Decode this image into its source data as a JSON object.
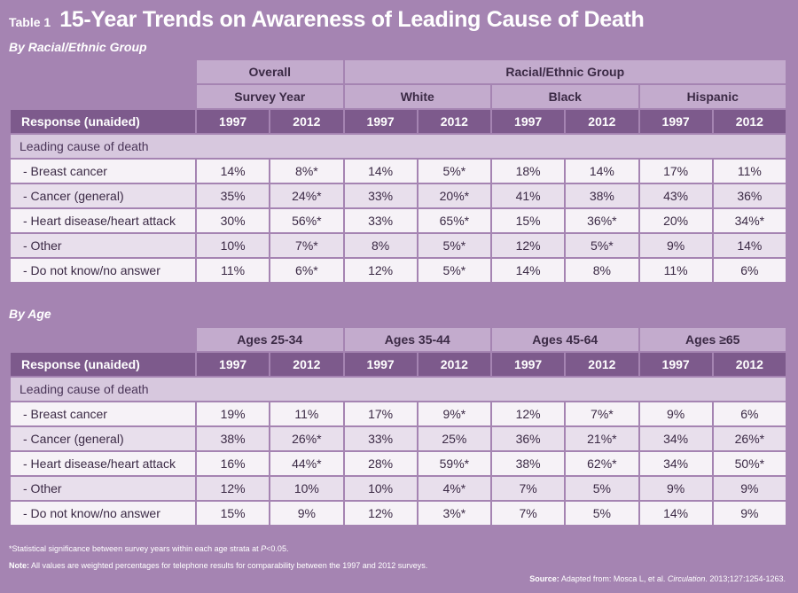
{
  "header": {
    "table_label": "Table 1",
    "title": "15-Year Trends on Awareness of Leading Cause of Death"
  },
  "section1": {
    "heading": "By Racial/Ethnic Group",
    "overall": "Overall",
    "racial_group": "Racial/Ethnic Group",
    "survey_year": "Survey Year",
    "groups": [
      "White",
      "Black",
      "Hispanic"
    ],
    "response_label": "Response (unaided)",
    "years": [
      "1997",
      "2012",
      "1997",
      "2012",
      "1997",
      "2012",
      "1997",
      "2012"
    ],
    "leading_label": "Leading cause of death",
    "rows": [
      {
        "label": "- Breast cancer",
        "values": [
          "14%",
          "8%*",
          "14%",
          "5%*",
          "18%",
          "14%",
          "17%",
          "11%"
        ]
      },
      {
        "label": "- Cancer (general)",
        "values": [
          "35%",
          "24%*",
          "33%",
          "20%*",
          "41%",
          "38%",
          "43%",
          "36%"
        ]
      },
      {
        "label": "- Heart disease/heart attack",
        "values": [
          "30%",
          "56%*",
          "33%",
          "65%*",
          "15%",
          "36%*",
          "20%",
          "34%*"
        ]
      },
      {
        "label": "- Other",
        "values": [
          "10%",
          "7%*",
          "8%",
          "5%*",
          "12%",
          "5%*",
          "9%",
          "14%"
        ]
      },
      {
        "label": "- Do not know/no answer",
        "values": [
          "11%",
          "6%*",
          "12%",
          "5%*",
          "14%",
          "8%",
          "11%",
          "6%"
        ]
      }
    ]
  },
  "section2": {
    "heading": "By Age",
    "groups": [
      "Ages 25-34",
      "Ages 35-44",
      "Ages 45-64",
      "Ages ≥65"
    ],
    "response_label": "Response (unaided)",
    "years": [
      "1997",
      "2012",
      "1997",
      "2012",
      "1997",
      "2012",
      "1997",
      "2012"
    ],
    "leading_label": "Leading cause of death",
    "rows": [
      {
        "label": "- Breast cancer",
        "values": [
          "19%",
          "11%",
          "17%",
          "9%*",
          "12%",
          "7%*",
          "9%",
          "6%"
        ]
      },
      {
        "label": "- Cancer (general)",
        "values": [
          "38%",
          "26%*",
          "33%",
          "25%",
          "36%",
          "21%*",
          "34%",
          "26%*"
        ]
      },
      {
        "label": "- Heart disease/heart attack",
        "values": [
          "16%",
          "44%*",
          "28%",
          "59%*",
          "38%",
          "62%*",
          "34%",
          "50%*"
        ]
      },
      {
        "label": "- Other",
        "values": [
          "12%",
          "10%",
          "10%",
          "4%*",
          "7%",
          "5%",
          "9%",
          "9%"
        ]
      },
      {
        "label": "- Do not know/no answer",
        "values": [
          "15%",
          "9%",
          "12%",
          "3%*",
          "7%",
          "5%",
          "14%",
          "9%"
        ]
      }
    ]
  },
  "footer": {
    "significance_pre": "*Statistical significance between survey years within each age strata at ",
    "significance_p": "P",
    "significance_post": "<0.05.",
    "note_label": "Note:",
    "note_text": " All values are weighted percentages for telephone results for comparability between the 1997 and 2012 surveys.",
    "source_label": "Source:",
    "source_pre": " Adapted from: Mosca L, et al. ",
    "source_journal": "Circulation",
    "source_post": ". 2013;127:1254-1263."
  }
}
